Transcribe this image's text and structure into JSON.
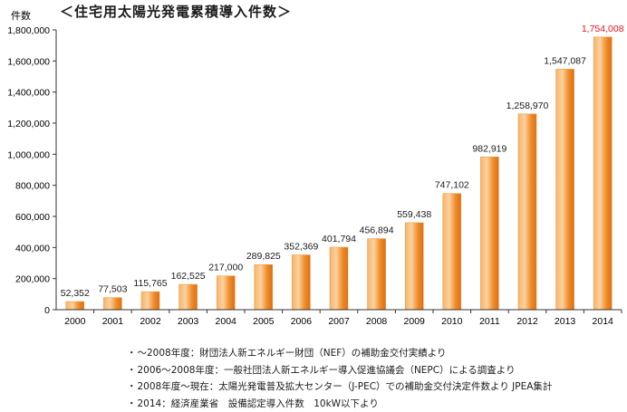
{
  "chart_data": {
    "type": "bar",
    "title": "＜住宅用太陽光発電累積導入件数＞",
    "ylabel": "件数",
    "xlabel": "",
    "ylim": [
      0,
      1800000
    ],
    "yticks": [
      0,
      200000,
      400000,
      600000,
      800000,
      1000000,
      1200000,
      1400000,
      1600000,
      1800000
    ],
    "ytick_labels": [
      "0",
      "200,000",
      "400,000",
      "600,000",
      "800,000",
      "1,000,000",
      "1,200,000",
      "1,400,000",
      "1,600,000",
      "1,800,000"
    ],
    "grid": false,
    "categories": [
      "2000",
      "2001",
      "2002",
      "2003",
      "2004",
      "2005",
      "2006",
      "2007",
      "2008",
      "2009",
      "2010",
      "2011",
      "2012",
      "2013",
      "2014"
    ],
    "values": [
      52352,
      77503,
      115765,
      162525,
      217000,
      289825,
      352369,
      401794,
      456894,
      559438,
      747102,
      982919,
      1258970,
      1547087,
      1754008
    ],
    "data_labels": [
      "52,352",
      "77,503",
      "115,765",
      "162,525",
      "217,000",
      "289,825",
      "352,369",
      "401,794",
      "456,894",
      "559,438",
      "747,102",
      "982,919",
      "1,258,970",
      "1,547,087",
      "1,754,008"
    ],
    "bar_color": "#f08c28",
    "highlight_label_color": "#e8141e",
    "highlight_index": 14
  },
  "notes": [
    "～2008年度：財団法人新エネルギー財団（NEF）の補助金交付実績より",
    "2006～2008年度：一般社団法人新エネルギー導入促進協議会（NEPC）による調査より",
    "2008年度～現在：太陽光発電普及拡大センター（J-PEC）での補助金交付決定件数より JPEA集計",
    "2014：経済産業省　設備認定導入件数　10kW以下より"
  ]
}
